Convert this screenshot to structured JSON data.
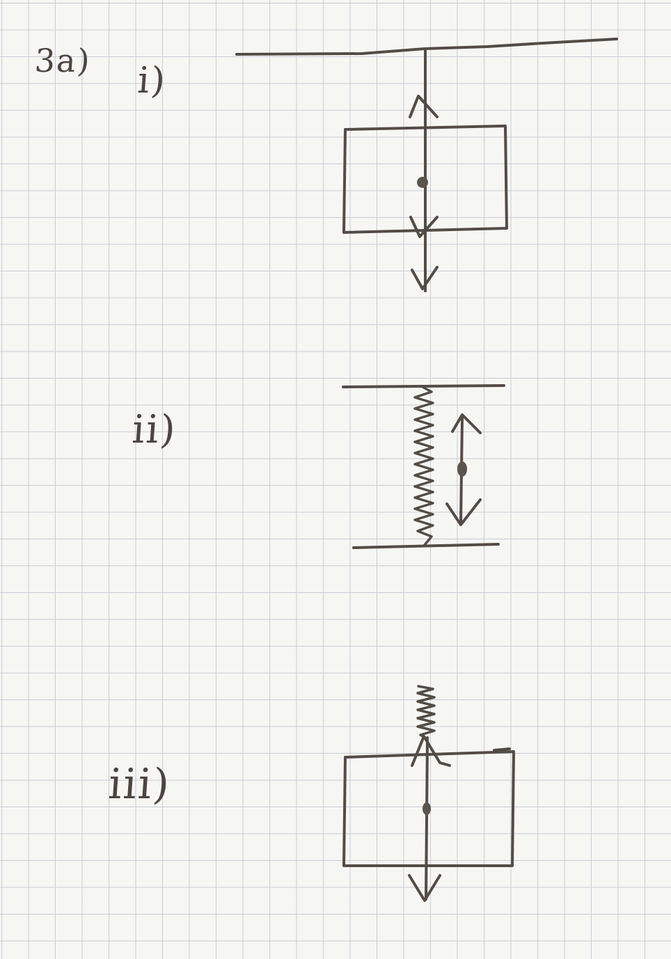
{
  "labels": {
    "question": "3a)",
    "part_i": "i)",
    "part_ii": "ii)",
    "part_iii": "iii)"
  },
  "ink_color": "#524c47",
  "paper_color": "#f6f6f3",
  "grid_color": "#c9ccd2"
}
